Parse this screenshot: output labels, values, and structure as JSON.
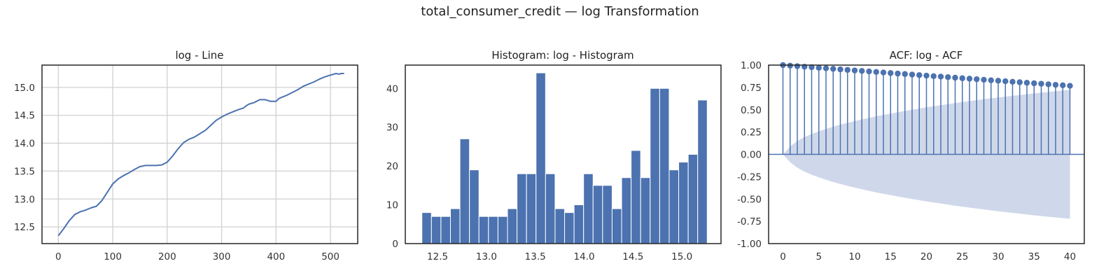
{
  "suptitle": "total_consumer_credit — log Transformation",
  "chart_data": [
    {
      "type": "line",
      "title": "log - Line",
      "xlabel": "",
      "ylabel": "",
      "grid": true,
      "color": "#4c72b0",
      "xlim": [
        -30,
        550
      ],
      "ylim": [
        12.2,
        15.4
      ],
      "xticks": [
        0,
        100,
        200,
        300,
        400,
        500
      ],
      "yticks": [
        12.5,
        13.0,
        13.5,
        14.0,
        14.5,
        15.0
      ],
      "x": [
        0,
        10,
        20,
        30,
        40,
        50,
        60,
        70,
        80,
        90,
        100,
        110,
        120,
        130,
        140,
        150,
        160,
        170,
        180,
        190,
        200,
        210,
        220,
        230,
        240,
        250,
        260,
        270,
        280,
        290,
        300,
        310,
        320,
        330,
        340,
        345,
        350,
        360,
        370,
        380,
        390,
        400,
        405,
        410,
        420,
        430,
        440,
        450,
        460,
        465,
        470,
        480,
        490,
        500,
        510,
        515,
        520,
        525
      ],
      "y": [
        12.34,
        12.47,
        12.61,
        12.72,
        12.77,
        12.8,
        12.84,
        12.87,
        12.97,
        13.12,
        13.27,
        13.36,
        13.42,
        13.47,
        13.53,
        13.58,
        13.6,
        13.6,
        13.6,
        13.61,
        13.66,
        13.77,
        13.9,
        14.01,
        14.07,
        14.11,
        14.17,
        14.23,
        14.32,
        14.41,
        14.47,
        14.52,
        14.56,
        14.6,
        14.63,
        14.67,
        14.7,
        14.73,
        14.78,
        14.78,
        14.75,
        14.75,
        14.8,
        14.82,
        14.86,
        14.91,
        14.96,
        15.02,
        15.06,
        15.08,
        15.1,
        15.15,
        15.19,
        15.22,
        15.25,
        15.24,
        15.25,
        15.25
      ]
    },
    {
      "type": "bar",
      "title": "Histogram: log - Histogram",
      "xlabel": "",
      "ylabel": "",
      "grid": false,
      "color": "#4c72b0",
      "xlim": [
        12.17,
        15.4
      ],
      "ylim": [
        0,
        46
      ],
      "xticks": [
        12.5,
        13.0,
        13.5,
        14.0,
        14.5,
        15.0
      ],
      "yticks": [
        0,
        10,
        20,
        30,
        40
      ],
      "bin_start": 12.34,
      "bin_width": 0.0973,
      "values": [
        8,
        7,
        7,
        9,
        27,
        19,
        7,
        7,
        7,
        9,
        18,
        18,
        44,
        18,
        9,
        8,
        10,
        18,
        15,
        15,
        9,
        17,
        24,
        17,
        40,
        40,
        19,
        21,
        23,
        37
      ]
    },
    {
      "type": "stem",
      "title": "ACF: log - ACF",
      "xlabel": "",
      "ylabel": "",
      "grid": false,
      "color": "#4c72b0",
      "band_color": "#cfd8ea",
      "xlim": [
        -2,
        42
      ],
      "ylim": [
        -1.0,
        1.0
      ],
      "xticks": [
        0,
        5,
        10,
        15,
        20,
        25,
        30,
        35,
        40
      ],
      "yticks": [
        -1.0,
        -0.75,
        -0.5,
        -0.25,
        0.0,
        0.25,
        0.5,
        0.75,
        1.0
      ],
      "lags": [
        0,
        1,
        2,
        3,
        4,
        5,
        6,
        7,
        8,
        9,
        10,
        11,
        12,
        13,
        14,
        15,
        16,
        17,
        18,
        19,
        20,
        21,
        22,
        23,
        24,
        25,
        26,
        27,
        28,
        29,
        30,
        31,
        32,
        33,
        34,
        35,
        36,
        37,
        38,
        39,
        40
      ],
      "values": [
        1.0,
        0.994,
        0.988,
        0.982,
        0.976,
        0.97,
        0.964,
        0.958,
        0.952,
        0.946,
        0.94,
        0.935,
        0.929,
        0.923,
        0.917,
        0.911,
        0.905,
        0.9,
        0.894,
        0.888,
        0.882,
        0.876,
        0.871,
        0.865,
        0.859,
        0.853,
        0.848,
        0.842,
        0.836,
        0.83,
        0.825,
        0.819,
        0.813,
        0.808,
        0.802,
        0.796,
        0.791,
        0.785,
        0.779,
        0.774,
        0.768
      ],
      "conf_band": [
        0.0,
        0.087,
        0.15,
        0.193,
        0.228,
        0.258,
        0.285,
        0.31,
        0.332,
        0.353,
        0.373,
        0.391,
        0.409,
        0.426,
        0.442,
        0.457,
        0.472,
        0.486,
        0.5,
        0.514,
        0.527,
        0.539,
        0.551,
        0.563,
        0.575,
        0.586,
        0.597,
        0.607,
        0.618,
        0.628,
        0.637,
        0.647,
        0.656,
        0.665,
        0.674,
        0.683,
        0.691,
        0.699,
        0.707,
        0.715,
        0.722
      ]
    }
  ]
}
